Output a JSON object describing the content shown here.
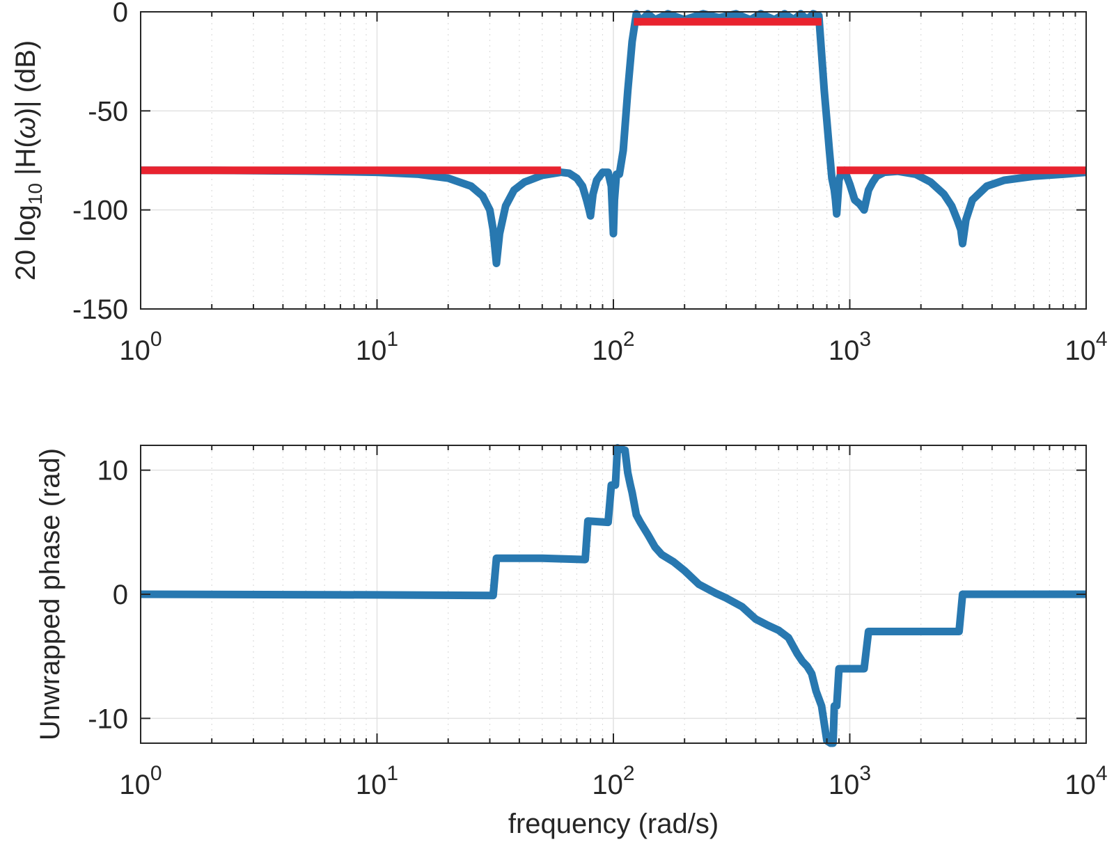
{
  "figure": {
    "xlabel": "frequency (rad/s)"
  },
  "chart_data": [
    {
      "type": "line",
      "ylabel": "20 log10 |H(ω)| (dB)",
      "xscale": "log",
      "xlim": [
        1,
        10000
      ],
      "ylim": [
        -150,
        0
      ],
      "xticks": [
        {
          "value": 1,
          "base": "10",
          "exp": "0"
        },
        {
          "value": 10,
          "base": "10",
          "exp": "1"
        },
        {
          "value": 100,
          "base": "10",
          "exp": "2"
        },
        {
          "value": 1000,
          "base": "10",
          "exp": "3"
        },
        {
          "value": 10000,
          "base": "10",
          "exp": "4"
        }
      ],
      "yticks": [
        {
          "value": 0,
          "label": "0"
        },
        {
          "value": -50,
          "label": "-50"
        },
        {
          "value": -100,
          "label": "-100"
        },
        {
          "value": -150,
          "label": "-150"
        }
      ],
      "grid": true,
      "series": [
        {
          "color": "#2878b0",
          "x": [
            1,
            2,
            5,
            10,
            15,
            20,
            25,
            28,
            30,
            31,
            32,
            33,
            35,
            38,
            42,
            50,
            60,
            65,
            70,
            74,
            77,
            79,
            80,
            82,
            85,
            90,
            95,
            98,
            100,
            101,
            103,
            106,
            110,
            115,
            120,
            125,
            130,
            140,
            150,
            170,
            200,
            240,
            280,
            330,
            380,
            420,
            480,
            530,
            580,
            620,
            660,
            700,
            740,
            780,
            800,
            820,
            840,
            860,
            870,
            880,
            890,
            900,
            920,
            950,
            1000,
            1050,
            1100,
            1150,
            1200,
            1250,
            1300,
            1400,
            1600,
            1900,
            2200,
            2500,
            2700,
            2850,
            2950,
            3000,
            3100,
            3300,
            3800,
            4500,
            6000,
            8000,
            10000
          ],
          "y": [
            -80,
            -80,
            -80.4,
            -81,
            -82,
            -84,
            -88,
            -93,
            -100,
            -110,
            -127,
            -112,
            -98,
            -90,
            -86,
            -82.5,
            -81,
            -81.5,
            -84,
            -88,
            -95,
            -100,
            -103,
            -92,
            -85,
            -81,
            -81,
            -88,
            -112,
            -95,
            -82,
            -82,
            -70,
            -40,
            -15,
            -1,
            -5,
            -1,
            -4,
            -1,
            -4,
            -1,
            -3,
            -1,
            -4,
            -1,
            -4,
            -1,
            -4,
            -1,
            -4,
            -1,
            -2,
            -40,
            -55,
            -70,
            -84,
            -90,
            -95,
            -102,
            -94,
            -85,
            -81,
            -80,
            -87,
            -95,
            -97,
            -100,
            -90,
            -86,
            -83,
            -81,
            -80.5,
            -82,
            -86,
            -92,
            -98,
            -105,
            -110,
            -117,
            -105,
            -95,
            -88,
            -85,
            -83,
            -82,
            -81
          ]
        },
        {
          "color": "#e8232f",
          "x": [
            1,
            60
          ],
          "y": [
            -80,
            -80
          ]
        },
        {
          "color": "#e8232f",
          "x": [
            122,
            760
          ],
          "y": [
            -5,
            -5
          ]
        },
        {
          "color": "#e8232f",
          "x": [
            880,
            10000
          ],
          "y": [
            -80,
            -80
          ]
        }
      ]
    },
    {
      "type": "line",
      "ylabel": "Unwrapped phase (rad)",
      "xscale": "log",
      "xlim": [
        1,
        10000
      ],
      "ylim": [
        -12,
        12
      ],
      "xticks": [
        {
          "value": 1,
          "base": "10",
          "exp": "0"
        },
        {
          "value": 10,
          "base": "10",
          "exp": "1"
        },
        {
          "value": 100,
          "base": "10",
          "exp": "2"
        },
        {
          "value": 1000,
          "base": "10",
          "exp": "3"
        },
        {
          "value": 10000,
          "base": "10",
          "exp": "4"
        }
      ],
      "yticks": [
        {
          "value": 10,
          "label": "10"
        },
        {
          "value": 0,
          "label": "0"
        },
        {
          "value": -10,
          "label": "-10"
        }
      ],
      "grid": true,
      "series": [
        {
          "color": "#2878b0",
          "x": [
            1,
            10,
            31,
            32,
            50,
            76,
            78,
            95,
            98,
            100,
            102,
            104,
            106,
            108,
            112,
            115,
            118,
            120,
            125,
            130,
            140,
            150,
            160,
            180,
            200,
            230,
            270,
            300,
            350,
            400,
            450,
            500,
            550,
            600,
            630,
            660,
            690,
            720,
            760,
            800,
            830,
            850,
            860,
            880,
            900,
            920,
            1150,
            1200,
            1220,
            2900,
            3000,
            3050,
            10000
          ],
          "y": [
            0,
            -0.05,
            -0.1,
            2.9,
            2.9,
            2.8,
            5.9,
            5.8,
            8.8,
            8.8,
            8.8,
            11.8,
            11.7,
            11.7,
            11.6,
            9.8,
            8.8,
            8.2,
            6.4,
            5.8,
            4.8,
            3.8,
            3.2,
            2.6,
            1.9,
            0.8,
            0.1,
            -0.3,
            -1,
            -2,
            -2.5,
            -2.9,
            -3.5,
            -4.8,
            -5.4,
            -5.8,
            -6.4,
            -7.8,
            -9,
            -11.8,
            -12,
            -12,
            -9,
            -9,
            -6,
            -6,
            -6,
            -3,
            -3,
            -3,
            0,
            0,
            0
          ]
        }
      ]
    }
  ]
}
